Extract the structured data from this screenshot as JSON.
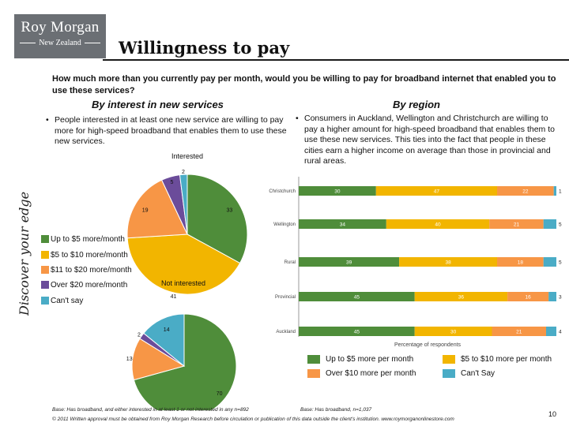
{
  "brand": {
    "name": "Roy Morgan",
    "region": "New Zealand",
    "tagline": "Discover your edge"
  },
  "title": "Willingness to pay",
  "question": "How much more than you currently pay per month, would you be willing to pay for broadband internet that enabled you to use these services?",
  "left": {
    "heading": "By interest in new services",
    "bullet": "People interested in at least one new service are willing to pay more for high-speed broadband that enables them to use these new services.",
    "legend": [
      "Up to $5 more/month",
      "$5 to $10 more/month",
      "$11 to $20 more/month",
      "Over $20 more/month",
      "Can't say"
    ],
    "footnote": "Base: Has broadband, and either interested in at least 1 or not interested in any n=892"
  },
  "right": {
    "heading": "By region",
    "bullet": "Consumers in Auckland, Wellington and Christchurch are willing to pay a higher amount for high-speed broadband that enables them to use these new services. This ties into the fact that people in these cities earn a higher income on average than those in provincial and rural areas.",
    "footnote": "Base: Has broadband, n=1,037"
  },
  "colors": {
    "c1": "#4f8d3a",
    "c2": "#f2b500",
    "c3": "#f79646",
    "c4": "#4aacc6",
    "c5": "#6b4c9a",
    "axis": "#999999"
  },
  "chart_data": [
    {
      "type": "pie",
      "title": "Interested",
      "categories": [
        "Up to $5 more/month",
        "$5 to $10 more/month",
        "$11 to $20 more/month",
        "Over $20 more/month",
        "Can't say"
      ],
      "values": [
        33,
        41,
        19,
        5,
        2
      ]
    },
    {
      "type": "pie",
      "title": "Not interested",
      "categories": [
        "Up to $5 more/month",
        "$5 to $10 more/month",
        "$11 to $20 more/month",
        "Over $20 more/month",
        "Can't say"
      ],
      "values": [
        70,
        0,
        13,
        2,
        14
      ]
    },
    {
      "type": "bar",
      "orientation": "horizontal",
      "stacked": true,
      "categories": [
        "Christchurch",
        "Wellington",
        "Rural",
        "Provincial",
        "Auckland"
      ],
      "xlabel": "Percentage of respondents",
      "xlim": [
        0,
        100
      ],
      "legend": "bottom",
      "series": [
        {
          "name": "Up to $5 more per month",
          "values": [
            30,
            34,
            39,
            45,
            45
          ]
        },
        {
          "name": "$5 to $10 more per month",
          "values": [
            47,
            40,
            38,
            36,
            30
          ]
        },
        {
          "name": "Over $10 more per month",
          "values": [
            22,
            21,
            18,
            16,
            21
          ]
        },
        {
          "name": "Can't Say",
          "values": [
            1,
            5,
            5,
            3,
            4
          ]
        }
      ]
    }
  ],
  "copyright": "© 2011 Written approval must be obtained from Roy Morgan Research before circulation or publication of this data outside the client's institution. www.roymorganonlinestore.com",
  "page_number": "10"
}
